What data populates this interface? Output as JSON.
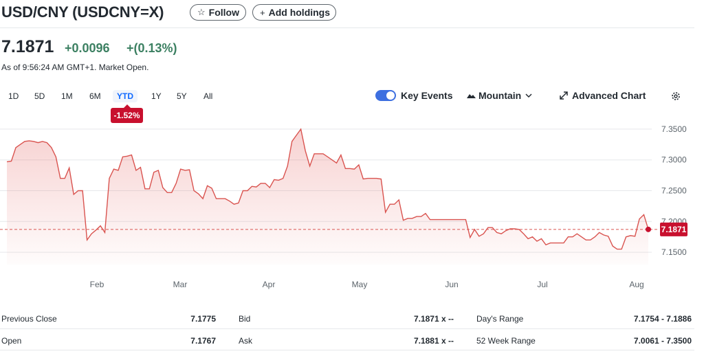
{
  "header": {
    "title": "USD/CNY (USDCNY=X)",
    "follow_label": "Follow",
    "add_holdings_label": "Add holdings"
  },
  "quote": {
    "price": "7.1871",
    "change": "+0.0096",
    "change_pct": "+(0.13%)",
    "as_of": "As of 9:56:24 AM GMT+1. Market Open."
  },
  "ranges": [
    "1D",
    "5D",
    "1M",
    "6M",
    "YTD",
    "1Y",
    "5Y",
    "All"
  ],
  "active_range": "YTD",
  "ytd_badge": "-1.52%",
  "controls": {
    "key_events": "Key Events",
    "mountain": "Mountain",
    "advanced_chart": "Advanced Chart"
  },
  "colors": {
    "line": "#d9534f",
    "positive": "#3c8062",
    "badge": "#c8102e",
    "toggle": "#3d6fe0"
  },
  "chart_data": {
    "type": "area",
    "x_tick_labels": [
      "Feb",
      "Mar",
      "Apr",
      "May",
      "Jun",
      "Jul",
      "Aug"
    ],
    "y_tick_labels": [
      "7.3500",
      "7.3000",
      "7.2500",
      "7.2000",
      "7.1500"
    ],
    "ylim": [
      7.13,
      7.37
    ],
    "reference_value": 7.1871,
    "last_label": "7.1871",
    "grid": true,
    "values": [
      7.297,
      7.298,
      7.32,
      7.325,
      7.33,
      7.331,
      7.33,
      7.328,
      7.33,
      7.328,
      7.32,
      7.305,
      7.27,
      7.27,
      7.287,
      7.244,
      7.25,
      7.25,
      7.17,
      7.18,
      7.186,
      7.193,
      7.182,
      7.27,
      7.285,
      7.283,
      7.305,
      7.306,
      7.308,
      7.283,
      7.288,
      7.253,
      7.253,
      7.28,
      7.283,
      7.255,
      7.247,
      7.247,
      7.262,
      7.285,
      7.283,
      7.284,
      7.25,
      7.245,
      7.237,
      7.258,
      7.254,
      7.237,
      7.237,
      7.237,
      7.233,
      7.228,
      7.23,
      7.25,
      7.25,
      7.257,
      7.256,
      7.262,
      7.262,
      7.255,
      7.268,
      7.267,
      7.27,
      7.29,
      7.33,
      7.34,
      7.35,
      7.315,
      7.29,
      7.31,
      7.31,
      7.31,
      7.305,
      7.3,
      7.295,
      7.308,
      7.286,
      7.286,
      7.285,
      7.292,
      7.269,
      7.27,
      7.27,
      7.27,
      7.269,
      7.215,
      7.228,
      7.228,
      7.235,
      7.202,
      7.205,
      7.205,
      7.208,
      7.208,
      7.213,
      7.203,
      7.203,
      7.203,
      7.203,
      7.203,
      7.203,
      7.203,
      7.203,
      7.203,
      7.174,
      7.187,
      7.176,
      7.18,
      7.19,
      7.19,
      7.182,
      7.18,
      7.185,
      7.188,
      7.188,
      7.187,
      7.18,
      7.172,
      7.175,
      7.168,
      7.172,
      7.162,
      7.165,
      7.165,
      7.165,
      7.165,
      7.175,
      7.175,
      7.18,
      7.175,
      7.17,
      7.17,
      7.175,
      7.182,
      7.178,
      7.176,
      7.16,
      7.155,
      7.155,
      7.175,
      7.177,
      7.176,
      7.204,
      7.211,
      7.1871
    ]
  },
  "stats": {
    "rows": [
      [
        {
          "label": "Previous Close",
          "value": "7.1775"
        },
        {
          "label": "Bid",
          "value": "7.1871 x --"
        },
        {
          "label": "Day's Range",
          "value": "7.1754 - 7.1886"
        }
      ],
      [
        {
          "label": "Open",
          "value": "7.1767"
        },
        {
          "label": "Ask",
          "value": "7.1881 x --"
        },
        {
          "label": "52 Week Range",
          "value": "7.0061 - 7.3500"
        }
      ]
    ]
  }
}
